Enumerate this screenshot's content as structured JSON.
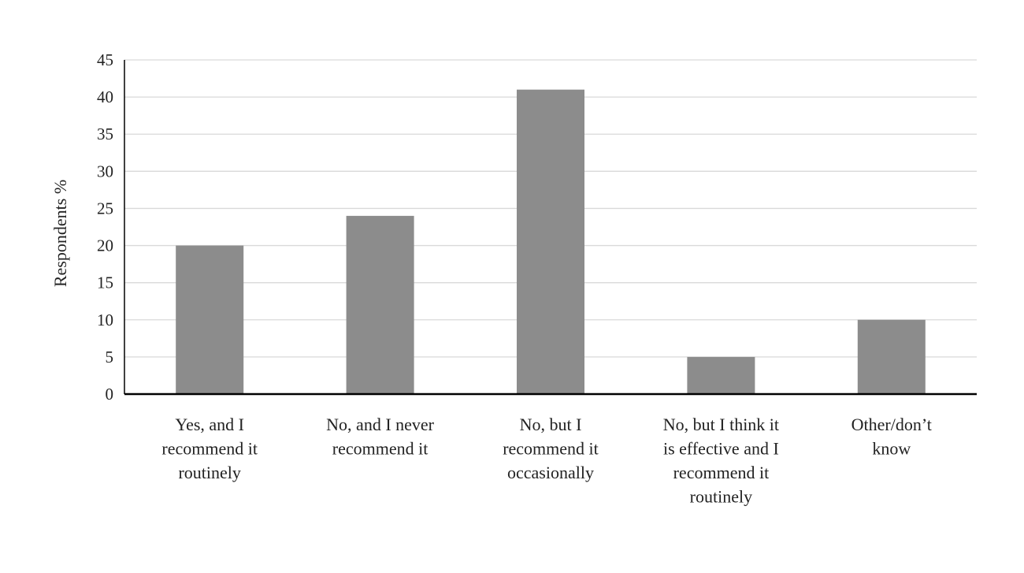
{
  "chart_data": {
    "type": "bar",
    "title": "",
    "xlabel": "",
    "ylabel": "Respondents %",
    "ylim": [
      0,
      45
    ],
    "yticks": [
      "0",
      "5",
      "10",
      "15",
      "20",
      "25",
      "30",
      "35",
      "40",
      "45"
    ],
    "grid": true,
    "legend": "none",
    "categories": [
      [
        "Yes, and I",
        "recommend it",
        "routinely"
      ],
      [
        "No, and I never",
        "recommend it"
      ],
      [
        "No, but I",
        "recommend it",
        "occasionally"
      ],
      [
        "No, but I think it",
        "is effective and I",
        "recommend it",
        "routinely"
      ],
      [
        "Other/don’t",
        "know"
      ]
    ],
    "values": [
      20,
      24,
      41,
      5,
      10
    ],
    "colors": {
      "bar": "#8c8c8c",
      "grid": "#d9d9d9",
      "axis": "#000000"
    }
  }
}
